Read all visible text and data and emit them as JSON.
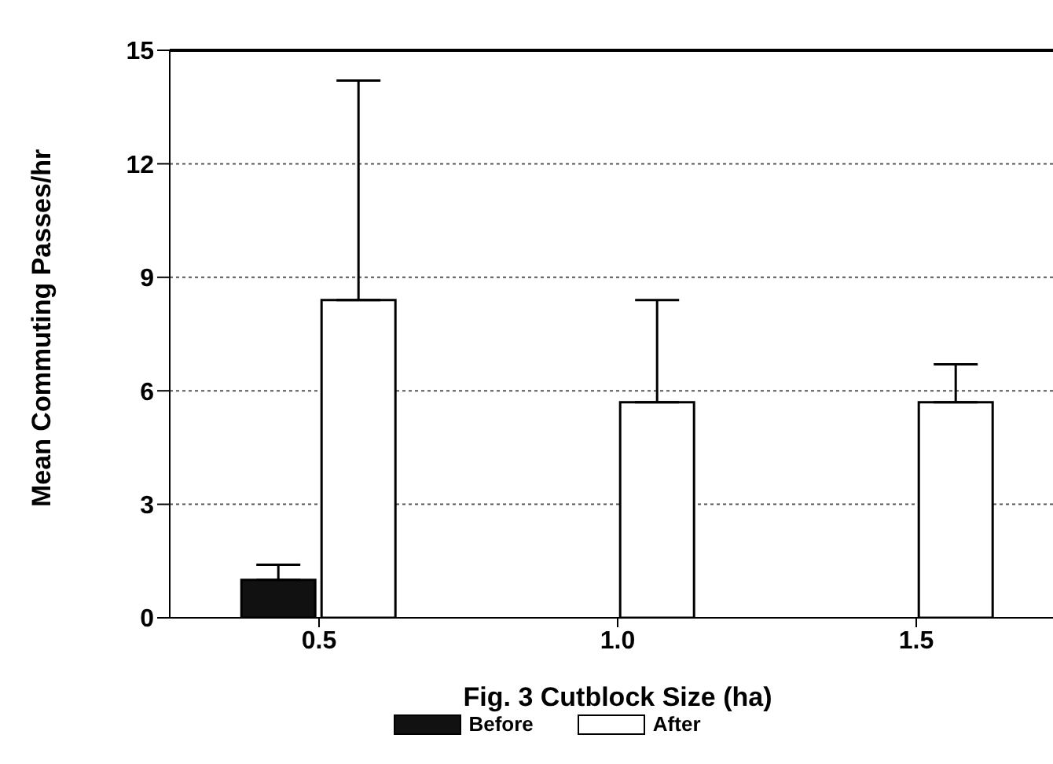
{
  "chart_data": {
    "type": "bar",
    "xlabel": "Fig. 3 Cutblock Size (ha)",
    "ylabel": "Mean Commuting Passes/hr",
    "categories": [
      "0.5",
      "1.0",
      "1.5"
    ],
    "series": [
      {
        "name": "Before",
        "color": "#111111",
        "values": [
          1.0,
          null,
          null
        ],
        "errors": [
          [
            1.0,
            1.4
          ],
          null,
          null
        ]
      },
      {
        "name": "After",
        "color": "#ffffff",
        "values": [
          8.4,
          5.7,
          5.7
        ],
        "errors": [
          [
            8.4,
            14.2
          ],
          [
            5.7,
            8.4
          ],
          [
            5.7,
            6.7
          ]
        ]
      }
    ],
    "ylim": [
      0,
      15
    ],
    "yticks": [
      0,
      3,
      6,
      9,
      12,
      15
    ],
    "grid": "y",
    "legend": "bottom"
  }
}
